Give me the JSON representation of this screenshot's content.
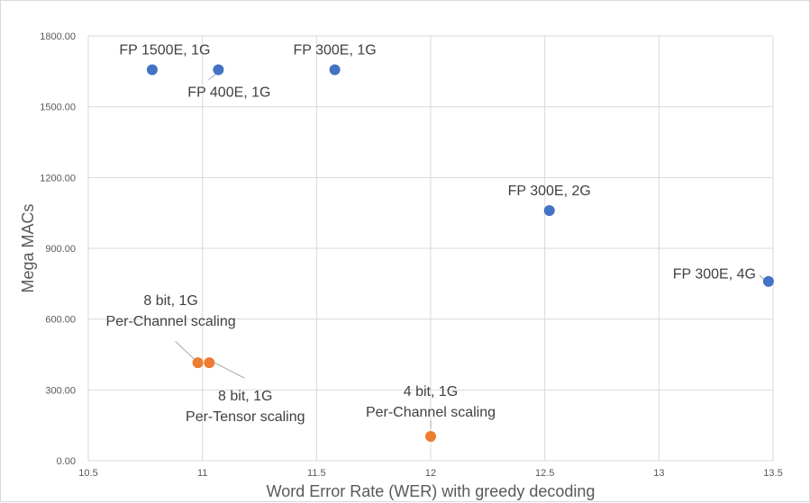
{
  "chart_data": {
    "type": "scatter",
    "title": "",
    "xlabel": "Word Error Rate (WER) with greedy decoding",
    "ylabel": "Mega MACs",
    "xlim": [
      10.5,
      13.5
    ],
    "ylim": [
      0,
      1800
    ],
    "x_ticks": [
      "10.5",
      "11",
      "11.5",
      "12",
      "12.5",
      "13",
      "13.5"
    ],
    "y_ticks": [
      "0.00",
      "300.00",
      "600.00",
      "900.00",
      "1200.00",
      "1500.00",
      "1800.00"
    ],
    "grid": true,
    "legend": "none",
    "series": [
      {
        "color": "#4472c4",
        "points": [
          {
            "x": 10.78,
            "y": 1657,
            "label": [
              "FP 1500E, 1G"
            ]
          },
          {
            "x": 11.07,
            "y": 1657,
            "label": [
              "FP 400E, 1G"
            ]
          },
          {
            "x": 11.58,
            "y": 1657,
            "label": [
              "FP 300E, 1G"
            ]
          },
          {
            "x": 12.52,
            "y": 1060,
            "label": [
              "FP 300E, 2G"
            ]
          },
          {
            "x": 13.48,
            "y": 760,
            "label": [
              "FP 300E, 4G"
            ]
          }
        ]
      },
      {
        "color": "#ed7d31",
        "points": [
          {
            "x": 10.98,
            "y": 415,
            "label": [
              "8 bit, 1G",
              "Per-Channel scaling"
            ]
          },
          {
            "x": 11.03,
            "y": 415,
            "label": [
              "8 bit, 1G",
              "Per-Tensor scaling"
            ]
          },
          {
            "x": 12.0,
            "y": 103,
            "label": [
              "4 bit, 1G",
              "Per-Channel scaling"
            ]
          }
        ]
      }
    ]
  }
}
